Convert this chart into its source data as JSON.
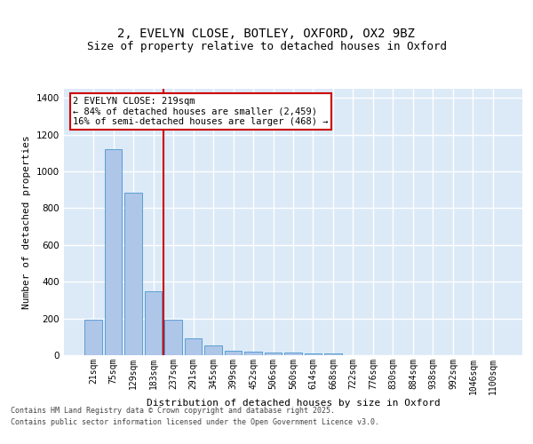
{
  "title": "2, EVELYN CLOSE, BOTLEY, OXFORD, OX2 9BZ",
  "subtitle": "Size of property relative to detached houses in Oxford",
  "xlabel": "Distribution of detached houses by size in Oxford",
  "ylabel": "Number of detached properties",
  "categories": [
    "21sqm",
    "75sqm",
    "129sqm",
    "183sqm",
    "237sqm",
    "291sqm",
    "345sqm",
    "399sqm",
    "452sqm",
    "506sqm",
    "560sqm",
    "614sqm",
    "668sqm",
    "722sqm",
    "776sqm",
    "830sqm",
    "884sqm",
    "938sqm",
    "992sqm",
    "1046sqm",
    "1100sqm"
  ],
  "values": [
    195,
    1120,
    885,
    350,
    195,
    90,
    55,
    22,
    20,
    15,
    15,
    8,
    8,
    0,
    0,
    0,
    0,
    0,
    0,
    0,
    0
  ],
  "bar_color": "#aec6e8",
  "bar_edge_color": "#5a9fd4",
  "vline_color": "#cc0000",
  "annotation_text": "2 EVELYN CLOSE: 219sqm\n← 84% of detached houses are smaller (2,459)\n16% of semi-detached houses are larger (468) →",
  "annotation_box_color": "#ffffff",
  "annotation_box_edge": "#cc0000",
  "ylim": [
    0,
    1450
  ],
  "background_color": "#dce9f7",
  "grid_color": "#ffffff",
  "footer_line1": "Contains HM Land Registry data © Crown copyright and database right 2025.",
  "footer_line2": "Contains public sector information licensed under the Open Government Licence v3.0.",
  "title_fontsize": 10,
  "subtitle_fontsize": 9,
  "tick_fontsize": 7,
  "ylabel_fontsize": 8,
  "xlabel_fontsize": 8,
  "footer_fontsize": 6
}
